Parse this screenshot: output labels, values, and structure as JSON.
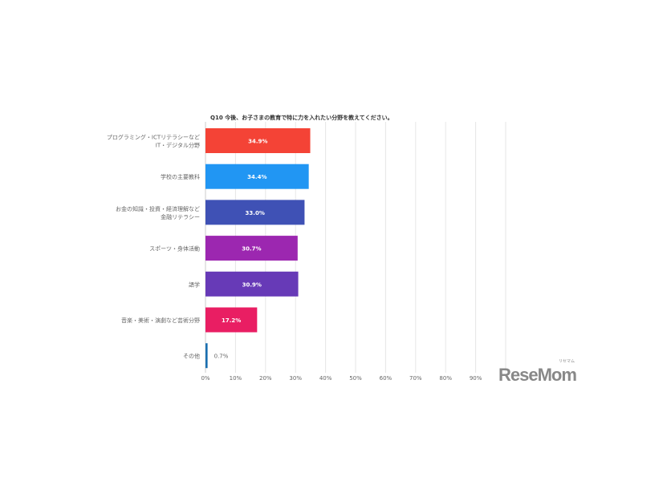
{
  "chart_data": {
    "type": "bar",
    "orientation": "horizontal",
    "title": "Q10 今後、お子さまの教育で特に力を入れたい分野を教えてください。",
    "categories": [
      [
        "プログラミング・ICTリテラシーなど",
        "IT・デジタル分野"
      ],
      [
        "学校の主要教科"
      ],
      [
        "お金の知識・投資・経済理解など",
        "金融リテラシー"
      ],
      [
        "スポーツ・身体活動"
      ],
      [
        "語学"
      ],
      [
        "音楽・美術・演劇など芸術分野"
      ],
      [
        "その他"
      ]
    ],
    "values": [
      34.9,
      34.4,
      33.0,
      30.7,
      30.9,
      17.2,
      0.7
    ],
    "data_labels": [
      "34.9%",
      "34.4%",
      "33.0%",
      "30.7%",
      "30.9%",
      "17.2%",
      "0.7%"
    ],
    "colors": [
      "#f44336",
      "#2196f3",
      "#3f51b5",
      "#9c27b0",
      "#673ab7",
      "#e91e63",
      "#1a6fb0"
    ],
    "xlim": [
      0,
      100
    ],
    "xticks": [
      "0%",
      "10%",
      "20%",
      "30%",
      "40%",
      "50%",
      "60%",
      "70%",
      "80%",
      "90%"
    ],
    "grid": true
  },
  "logo": {
    "text": "ReseMom",
    "sub": "リセマム"
  }
}
